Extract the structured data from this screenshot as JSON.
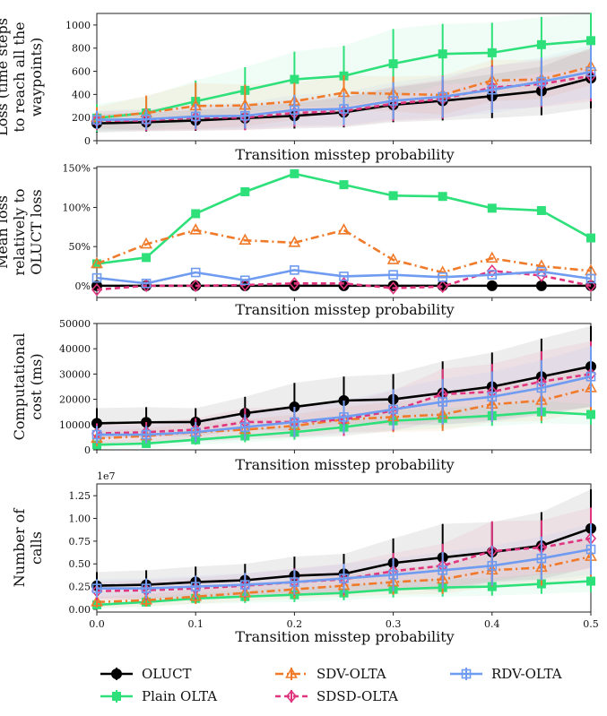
{
  "figure": {
    "colors": {
      "OLUCT": "#000000",
      "Plain OLTA": "#2ee07a",
      "SDV-OLTA": "#f07a2a",
      "SDSD-OLTA": "#e0357e",
      "RDV-OLTA": "#6f9bf0"
    },
    "legend": [
      {
        "name": "OLUCT",
        "marker": "circle",
        "dash": "solid"
      },
      {
        "name": "Plain OLTA",
        "marker": "square",
        "dash": "solid"
      },
      {
        "name": "SDV-OLTA",
        "marker": "triangle",
        "dash": "dashdot"
      },
      {
        "name": "SDSD-OLTA",
        "marker": "diamond",
        "dash": "dashed"
      },
      {
        "name": "RDV-OLTA",
        "marker": "square-open",
        "dash": "solid"
      }
    ],
    "legend_placement": "bottom"
  },
  "chart_data": [
    {
      "type": "line",
      "title": "",
      "xlabel": "Transition misstep probability",
      "ylabel": "Loss (time steps to reach all the waypoints)",
      "ylabel_lines": [
        "Loss (time steps",
        "to reach all the",
        "waypoints)"
      ],
      "x": [
        0,
        0.05,
        0.1,
        0.15,
        0.2,
        0.25,
        0.3,
        0.35,
        0.4,
        0.45,
        0.5
      ],
      "xlim": [
        0,
        0.5
      ],
      "ylim": [
        0,
        1100
      ],
      "yticks": [
        0,
        200,
        400,
        600,
        800,
        1000
      ],
      "ytick_labels": [
        "0",
        "200",
        "400",
        "600",
        "800",
        "1000"
      ],
      "show_xtick_labels": false,
      "series": [
        {
          "name": "OLUCT",
          "values": [
            150,
            160,
            175,
            195,
            215,
            245,
            310,
            345,
            385,
            430,
            540
          ],
          "err": [
            80,
            80,
            90,
            100,
            110,
            130,
            150,
            170,
            190,
            210,
            260
          ],
          "band": true
        },
        {
          "name": "Plain OLTA",
          "values": [
            195,
            240,
            340,
            435,
            530,
            560,
            665,
            750,
            760,
            830,
            865
          ],
          "err": [
            120,
            140,
            180,
            200,
            240,
            260,
            300,
            260,
            260,
            240,
            240
          ],
          "band": true
        },
        {
          "name": "SDV-OLTA",
          "values": [
            200,
            240,
            300,
            305,
            340,
            415,
            405,
            395,
            520,
            530,
            640
          ],
          "err": [
            90,
            150,
            200,
            180,
            160,
            150,
            150,
            170,
            180,
            170,
            160
          ],
          "band": true
        },
        {
          "name": "SDSD-OLTA",
          "values": [
            170,
            175,
            200,
            200,
            240,
            255,
            320,
            360,
            460,
            490,
            560
          ],
          "err": [
            80,
            90,
            110,
            110,
            120,
            130,
            150,
            170,
            190,
            200,
            220
          ],
          "band": true
        },
        {
          "name": "RDV-OLTA",
          "values": [
            180,
            185,
            210,
            215,
            265,
            275,
            345,
            380,
            440,
            510,
            595
          ],
          "err": [
            80,
            90,
            110,
            110,
            130,
            140,
            160,
            180,
            200,
            210,
            230
          ],
          "band": true
        }
      ]
    },
    {
      "type": "line",
      "title": "",
      "xlabel": "Transition misstep probability",
      "ylabel": "Mean loss relatively to OLUCT loss",
      "ylabel_lines": [
        "Mean loss",
        "relatively to",
        "OLUCT loss"
      ],
      "x": [
        0,
        0.05,
        0.1,
        0.15,
        0.2,
        0.25,
        0.3,
        0.35,
        0.4,
        0.45,
        0.5
      ],
      "xlim": [
        0,
        0.5
      ],
      "ylim": [
        -15,
        152
      ],
      "yticks": [
        0,
        50,
        100,
        150
      ],
      "ytick_labels": [
        "0%",
        "50%",
        "100%",
        "150%"
      ],
      "show_xtick_labels": false,
      "series": [
        {
          "name": "OLUCT",
          "values": [
            0,
            0,
            0,
            0,
            0,
            0,
            0,
            0,
            0,
            0,
            0
          ]
        },
        {
          "name": "Plain OLTA",
          "values": [
            28,
            36,
            92,
            120,
            143,
            129,
            115,
            114,
            99,
            96,
            61
          ]
        },
        {
          "name": "SDV-OLTA",
          "values": [
            28,
            53,
            71,
            58,
            55,
            71,
            33,
            17,
            35,
            25,
            19
          ]
        },
        {
          "name": "SDSD-OLTA",
          "values": [
            -5,
            0,
            0,
            1,
            3,
            3,
            -3,
            -1,
            19,
            13,
            0
          ]
        },
        {
          "name": "RDV-OLTA",
          "values": [
            10,
            3,
            17,
            7,
            20,
            12,
            14,
            11,
            14,
            18,
            9
          ]
        }
      ]
    },
    {
      "type": "line",
      "title": "",
      "xlabel": "Transition misstep probability",
      "ylabel": "Computational cost (ms)",
      "ylabel_lines": [
        "Computational",
        "cost (ms)"
      ],
      "x": [
        0,
        0.05,
        0.1,
        0.15,
        0.2,
        0.25,
        0.3,
        0.35,
        0.4,
        0.45,
        0.5
      ],
      "xlim": [
        0,
        0.5
      ],
      "ylim": [
        0,
        50000
      ],
      "yticks": [
        0,
        10000,
        20000,
        30000,
        40000,
        50000
      ],
      "ytick_labels": [
        "0",
        "10000",
        "20000",
        "30000",
        "40000",
        "50000"
      ],
      "show_xtick_labels": false,
      "series": [
        {
          "name": "OLUCT",
          "values": [
            10500,
            10900,
            11000,
            14500,
            17000,
            19500,
            20000,
            22500,
            25000,
            29000,
            33000
          ],
          "err": [
            6000,
            6000,
            5500,
            6500,
            9500,
            9500,
            10000,
            12500,
            13500,
            15000,
            16000
          ],
          "band": true
        },
        {
          "name": "Plain OLTA",
          "values": [
            2000,
            2500,
            4000,
            5500,
            7000,
            9000,
            11500,
            12500,
            13500,
            15000,
            14000
          ],
          "err": [
            1500,
            1800,
            2000,
            2500,
            3000,
            3500,
            4000,
            4000,
            4000,
            4500,
            4000
          ],
          "band": true
        },
        {
          "name": "SDV-OLTA",
          "values": [
            4500,
            5500,
            7000,
            8000,
            9500,
            12000,
            13000,
            14000,
            18000,
            19500,
            24500
          ],
          "err": [
            3000,
            3000,
            3500,
            4000,
            4500,
            5000,
            6000,
            6500,
            7000,
            8000,
            9000
          ],
          "band": true
        },
        {
          "name": "SDSD-OLTA",
          "values": [
            6500,
            7000,
            8000,
            11000,
            11000,
            12000,
            15500,
            22000,
            23000,
            27000,
            30000
          ],
          "err": [
            4000,
            4000,
            4500,
            5500,
            6000,
            6500,
            8000,
            10000,
            11000,
            12000,
            13000
          ],
          "band": true
        },
        {
          "name": "RDV-OLTA",
          "values": [
            6000,
            6000,
            7000,
            9000,
            11000,
            13000,
            16000,
            19000,
            21000,
            24500,
            29000
          ],
          "err": [
            3500,
            3500,
            4000,
            5000,
            6000,
            6500,
            8000,
            9000,
            10000,
            11000,
            12000
          ],
          "band": true
        }
      ]
    },
    {
      "type": "line",
      "title": "",
      "xlabel": "Transition misstep probability",
      "ylabel": "Number of calls",
      "ylabel_lines": [
        "Number of",
        "calls"
      ],
      "scale_label": "1e7",
      "x": [
        0,
        0.05,
        0.1,
        0.15,
        0.2,
        0.25,
        0.3,
        0.35,
        0.4,
        0.45,
        0.5
      ],
      "xlim": [
        0,
        0.5
      ],
      "ylim": [
        -0.03,
        1.38
      ],
      "yticks": [
        0,
        0.25,
        0.5,
        0.75,
        1.0,
        1.25
      ],
      "ytick_labels": [
        "0.00",
        "0.25",
        "0.50",
        "0.75",
        "1.00",
        "1.25"
      ],
      "show_xtick_labels": true,
      "xtick_labels": [
        "0.0",
        "0.1",
        "0.2",
        "0.3",
        "0.4",
        "0.5"
      ],
      "xtick_values": [
        0,
        0.1,
        0.2,
        0.3,
        0.4,
        0.5
      ],
      "series": [
        {
          "name": "OLUCT",
          "values": [
            0.26,
            0.27,
            0.3,
            0.32,
            0.37,
            0.39,
            0.51,
            0.57,
            0.63,
            0.7,
            0.89
          ],
          "err": [
            0.15,
            0.16,
            0.17,
            0.18,
            0.21,
            0.22,
            0.27,
            0.37,
            0.33,
            0.37,
            0.43
          ],
          "band": true
        },
        {
          "name": "Plain OLTA",
          "values": [
            0.05,
            0.08,
            0.12,
            0.14,
            0.16,
            0.18,
            0.22,
            0.24,
            0.25,
            0.28,
            0.31
          ],
          "err": [
            0.04,
            0.05,
            0.06,
            0.07,
            0.08,
            0.08,
            0.09,
            0.1,
            0.1,
            0.11,
            0.12
          ],
          "band": true
        },
        {
          "name": "SDV-OLTA",
          "values": [
            0.08,
            0.1,
            0.14,
            0.18,
            0.22,
            0.26,
            0.3,
            0.33,
            0.43,
            0.46,
            0.58
          ],
          "err": [
            0.06,
            0.07,
            0.08,
            0.09,
            0.1,
            0.12,
            0.14,
            0.16,
            0.18,
            0.2,
            0.22
          ],
          "band": true
        },
        {
          "name": "SDSD-OLTA",
          "values": [
            0.2,
            0.21,
            0.23,
            0.26,
            0.3,
            0.33,
            0.42,
            0.48,
            0.64,
            0.68,
            0.78
          ],
          "err": [
            0.1,
            0.11,
            0.12,
            0.13,
            0.15,
            0.17,
            0.2,
            0.24,
            0.33,
            0.3,
            0.34
          ],
          "band": true
        },
        {
          "name": "RDV-OLTA",
          "values": [
            0.23,
            0.23,
            0.25,
            0.27,
            0.3,
            0.34,
            0.38,
            0.43,
            0.48,
            0.56,
            0.66
          ],
          "err": [
            0.1,
            0.11,
            0.12,
            0.13,
            0.14,
            0.16,
            0.18,
            0.2,
            0.22,
            0.24,
            0.28
          ],
          "band": true
        }
      ]
    }
  ]
}
